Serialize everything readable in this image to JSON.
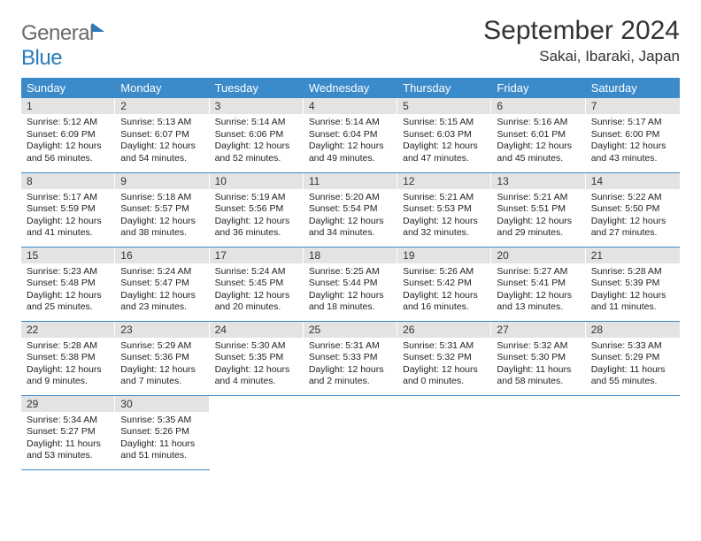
{
  "logo": {
    "text1": "General",
    "text2": "Blue"
  },
  "title": "September 2024",
  "location": "Sakai, Ibaraki, Japan",
  "colors": {
    "header_bg": "#3b8aca",
    "header_fg": "#ffffff",
    "daynum_bg": "#e3e3e3",
    "rule": "#3b8aca",
    "logo_gray": "#6a6a6a",
    "logo_blue": "#2a7ab9"
  },
  "weekdays": [
    "Sunday",
    "Monday",
    "Tuesday",
    "Wednesday",
    "Thursday",
    "Friday",
    "Saturday"
  ],
  "weeks": [
    [
      {
        "n": "1",
        "sr": "5:12 AM",
        "ss": "6:09 PM",
        "dl": "12 hours and 56 minutes."
      },
      {
        "n": "2",
        "sr": "5:13 AM",
        "ss": "6:07 PM",
        "dl": "12 hours and 54 minutes."
      },
      {
        "n": "3",
        "sr": "5:14 AM",
        "ss": "6:06 PM",
        "dl": "12 hours and 52 minutes."
      },
      {
        "n": "4",
        "sr": "5:14 AM",
        "ss": "6:04 PM",
        "dl": "12 hours and 49 minutes."
      },
      {
        "n": "5",
        "sr": "5:15 AM",
        "ss": "6:03 PM",
        "dl": "12 hours and 47 minutes."
      },
      {
        "n": "6",
        "sr": "5:16 AM",
        "ss": "6:01 PM",
        "dl": "12 hours and 45 minutes."
      },
      {
        "n": "7",
        "sr": "5:17 AM",
        "ss": "6:00 PM",
        "dl": "12 hours and 43 minutes."
      }
    ],
    [
      {
        "n": "8",
        "sr": "5:17 AM",
        "ss": "5:59 PM",
        "dl": "12 hours and 41 minutes."
      },
      {
        "n": "9",
        "sr": "5:18 AM",
        "ss": "5:57 PM",
        "dl": "12 hours and 38 minutes."
      },
      {
        "n": "10",
        "sr": "5:19 AM",
        "ss": "5:56 PM",
        "dl": "12 hours and 36 minutes."
      },
      {
        "n": "11",
        "sr": "5:20 AM",
        "ss": "5:54 PM",
        "dl": "12 hours and 34 minutes."
      },
      {
        "n": "12",
        "sr": "5:21 AM",
        "ss": "5:53 PM",
        "dl": "12 hours and 32 minutes."
      },
      {
        "n": "13",
        "sr": "5:21 AM",
        "ss": "5:51 PM",
        "dl": "12 hours and 29 minutes."
      },
      {
        "n": "14",
        "sr": "5:22 AM",
        "ss": "5:50 PM",
        "dl": "12 hours and 27 minutes."
      }
    ],
    [
      {
        "n": "15",
        "sr": "5:23 AM",
        "ss": "5:48 PM",
        "dl": "12 hours and 25 minutes."
      },
      {
        "n": "16",
        "sr": "5:24 AM",
        "ss": "5:47 PM",
        "dl": "12 hours and 23 minutes."
      },
      {
        "n": "17",
        "sr": "5:24 AM",
        "ss": "5:45 PM",
        "dl": "12 hours and 20 minutes."
      },
      {
        "n": "18",
        "sr": "5:25 AM",
        "ss": "5:44 PM",
        "dl": "12 hours and 18 minutes."
      },
      {
        "n": "19",
        "sr": "5:26 AM",
        "ss": "5:42 PM",
        "dl": "12 hours and 16 minutes."
      },
      {
        "n": "20",
        "sr": "5:27 AM",
        "ss": "5:41 PM",
        "dl": "12 hours and 13 minutes."
      },
      {
        "n": "21",
        "sr": "5:28 AM",
        "ss": "5:39 PM",
        "dl": "12 hours and 11 minutes."
      }
    ],
    [
      {
        "n": "22",
        "sr": "5:28 AM",
        "ss": "5:38 PM",
        "dl": "12 hours and 9 minutes."
      },
      {
        "n": "23",
        "sr": "5:29 AM",
        "ss": "5:36 PM",
        "dl": "12 hours and 7 minutes."
      },
      {
        "n": "24",
        "sr": "5:30 AM",
        "ss": "5:35 PM",
        "dl": "12 hours and 4 minutes."
      },
      {
        "n": "25",
        "sr": "5:31 AM",
        "ss": "5:33 PM",
        "dl": "12 hours and 2 minutes."
      },
      {
        "n": "26",
        "sr": "5:31 AM",
        "ss": "5:32 PM",
        "dl": "12 hours and 0 minutes."
      },
      {
        "n": "27",
        "sr": "5:32 AM",
        "ss": "5:30 PM",
        "dl": "11 hours and 58 minutes."
      },
      {
        "n": "28",
        "sr": "5:33 AM",
        "ss": "5:29 PM",
        "dl": "11 hours and 55 minutes."
      }
    ],
    [
      {
        "n": "29",
        "sr": "5:34 AM",
        "ss": "5:27 PM",
        "dl": "11 hours and 53 minutes."
      },
      {
        "n": "30",
        "sr": "5:35 AM",
        "ss": "5:26 PM",
        "dl": "11 hours and 51 minutes."
      },
      null,
      null,
      null,
      null,
      null
    ]
  ],
  "labels": {
    "sunrise": "Sunrise: ",
    "sunset": "Sunset: ",
    "daylight": "Daylight: "
  }
}
